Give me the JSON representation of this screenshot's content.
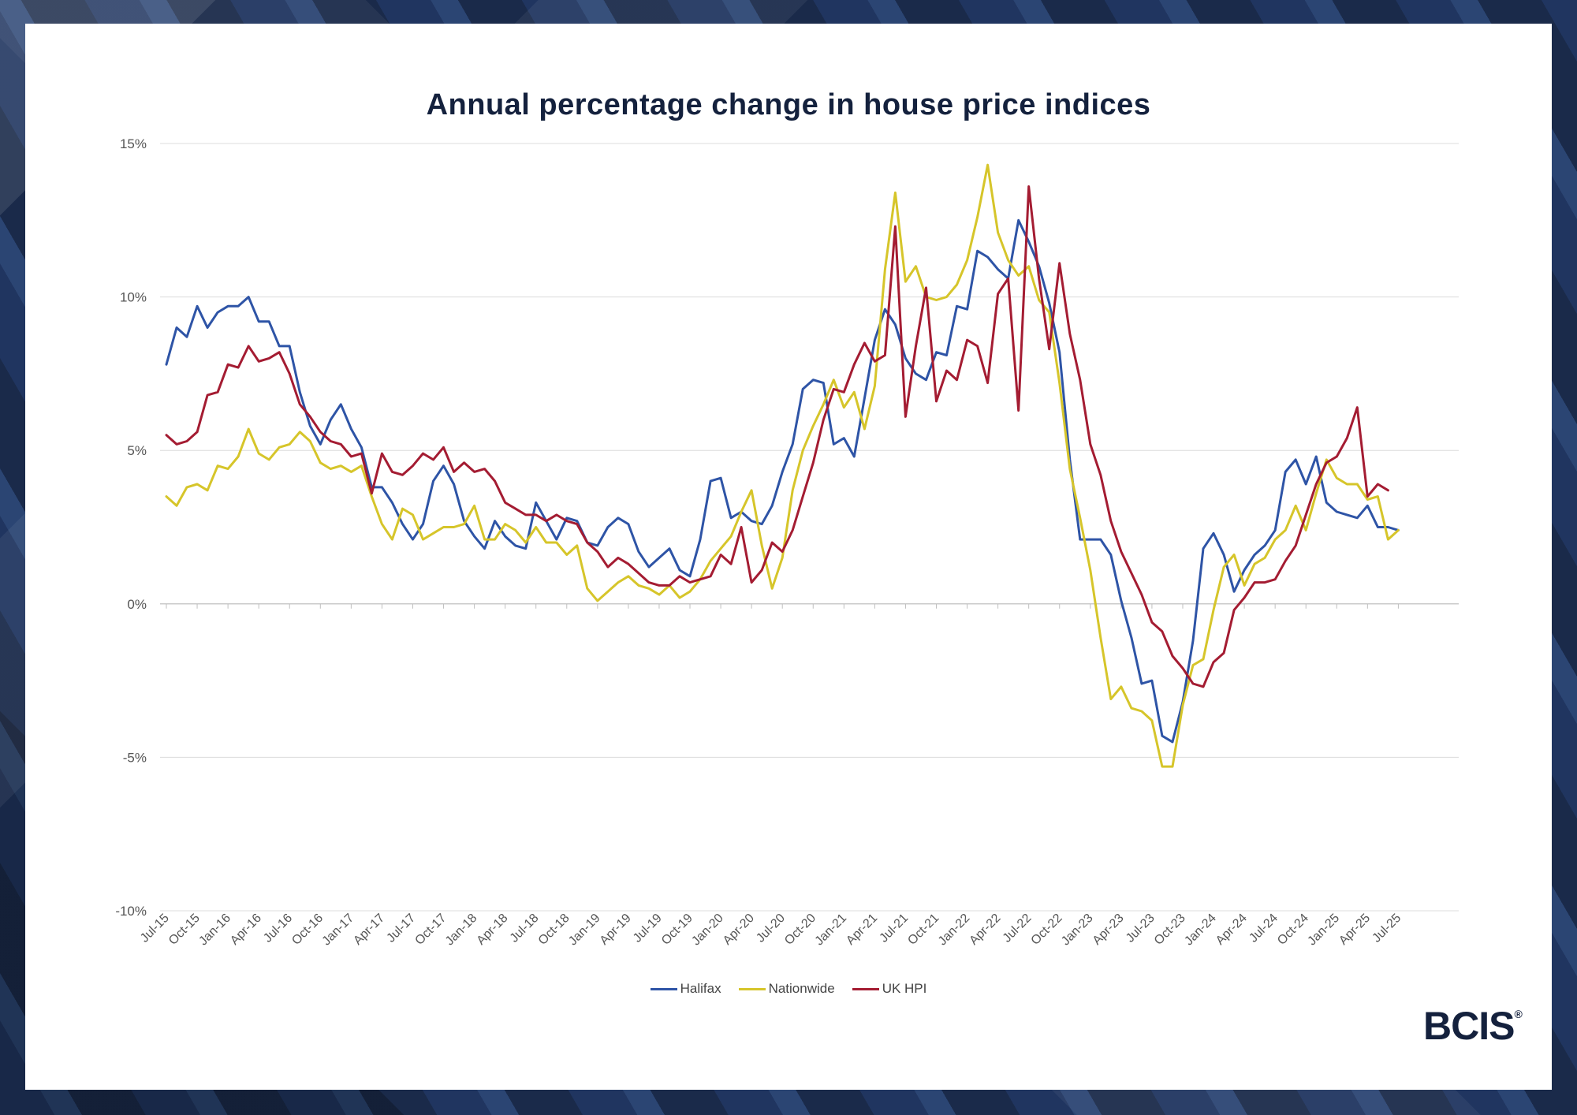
{
  "colors": {
    "halifax": "#2e54a6",
    "nationwide": "#d6c52a",
    "ukhpi": "#a41c32",
    "title": "#14213d"
  },
  "brand": {
    "logo_text": "BCIS",
    "logo_mark": "®"
  },
  "chart_data": {
    "type": "line",
    "title": "Annual percentage change in house price indices",
    "ylim": [
      -10,
      15
    ],
    "y_ticks": [
      15,
      10,
      5,
      0,
      -5,
      -10
    ],
    "y_tick_labels": [
      "15%",
      "10%",
      "5%",
      "0%",
      "-5%",
      "-10%"
    ],
    "x_start": "Jul-15",
    "x_tick_labels": [
      "Jul-15",
      "Oct-15",
      "Jan-16",
      "Apr-16",
      "Jul-16",
      "Oct-16",
      "Jan-17",
      "Apr-17",
      "Jul-17",
      "Oct-17",
      "Jan-18",
      "Apr-18",
      "Jul-18",
      "Oct-18",
      "Jan-19",
      "Apr-19",
      "Jul-19",
      "Oct-19",
      "Jan-20",
      "Apr-20",
      "Jul-20",
      "Oct-20",
      "Jan-21",
      "Apr-21",
      "Jul-21",
      "Oct-21",
      "Jan-22",
      "Apr-22",
      "Jul-22",
      "Oct-22",
      "Jan-23",
      "Apr-23",
      "Jul-23",
      "Oct-23",
      "Jan-24",
      "Apr-24",
      "Jul-24",
      "Oct-24",
      "Jan-25",
      "Apr-25",
      "Jul-25"
    ],
    "grid": true,
    "legend_position": "bottom",
    "series": [
      {
        "name": "Halifax",
        "color": "#2e54a6",
        "values": [
          7.8,
          9.0,
          8.7,
          9.7,
          9.0,
          9.5,
          9.7,
          9.7,
          10.0,
          9.2,
          9.2,
          8.4,
          8.4,
          6.9,
          5.8,
          5.2,
          6.0,
          6.5,
          5.7,
          5.1,
          3.8,
          3.8,
          3.3,
          2.6,
          2.1,
          2.6,
          4.0,
          4.5,
          3.9,
          2.7,
          2.2,
          1.8,
          2.7,
          2.2,
          1.9,
          1.8,
          3.3,
          2.7,
          2.1,
          2.8,
          2.7,
          2.0,
          1.9,
          2.5,
          2.8,
          2.6,
          1.7,
          1.2,
          1.5,
          1.8,
          1.1,
          0.9,
          2.1,
          4.0,
          4.1,
          2.8,
          3.0,
          2.7,
          2.6,
          3.2,
          4.3,
          5.2,
          7.0,
          7.3,
          7.2,
          5.2,
          5.4,
          4.8,
          6.7,
          8.6,
          9.6,
          9.1,
          8.0,
          7.5,
          7.3,
          8.2,
          8.1,
          9.7,
          9.6,
          11.5,
          11.3,
          10.9,
          10.6,
          12.5,
          11.8,
          11.0,
          9.8,
          8.2,
          4.7,
          2.1,
          2.1,
          2.1,
          1.6,
          0.1,
          -1.1,
          -2.6,
          -2.5,
          -4.3,
          -4.5,
          -3.2,
          -1.2,
          1.8,
          2.3,
          1.6,
          0.4,
          1.1,
          1.6,
          1.9,
          2.4,
          4.3,
          4.7,
          3.9,
          4.8,
          3.3,
          3.0,
          2.9,
          2.8,
          3.2,
          2.5,
          2.5,
          2.4
        ]
      },
      {
        "name": "Nationwide",
        "color": "#d6c52a",
        "values": [
          3.5,
          3.2,
          3.8,
          3.9,
          3.7,
          4.5,
          4.4,
          4.8,
          5.7,
          4.9,
          4.7,
          5.1,
          5.2,
          5.6,
          5.3,
          4.6,
          4.4,
          4.5,
          4.3,
          4.5,
          3.5,
          2.6,
          2.1,
          3.1,
          2.9,
          2.1,
          2.3,
          2.5,
          2.5,
          2.6,
          3.2,
          2.1,
          2.1,
          2.6,
          2.4,
          2.0,
          2.5,
          2.0,
          2.0,
          1.6,
          1.9,
          0.5,
          0.1,
          0.4,
          0.7,
          0.9,
          0.6,
          0.5,
          0.3,
          0.6,
          0.2,
          0.4,
          0.8,
          1.4,
          1.8,
          2.2,
          3.0,
          3.7,
          1.9,
          0.5,
          1.5,
          3.7,
          5.0,
          5.8,
          6.5,
          7.3,
          6.4,
          6.9,
          5.7,
          7.1,
          10.9,
          13.4,
          10.5,
          11.0,
          10.0,
          9.9,
          10.0,
          10.4,
          11.2,
          12.6,
          14.3,
          12.1,
          11.2,
          10.7,
          11.0,
          9.9,
          9.5,
          7.2,
          4.4,
          2.8,
          1.1,
          -1.1,
          -3.1,
          -2.7,
          -3.4,
          -3.5,
          -3.8,
          -5.3,
          -5.3,
          -3.3,
          -2.0,
          -1.8,
          -0.2,
          1.2,
          1.6,
          0.6,
          1.3,
          1.5,
          2.1,
          2.4,
          3.2,
          2.4,
          3.6,
          4.7,
          4.1,
          3.9,
          3.9,
          3.4,
          3.5,
          2.1,
          2.4
        ]
      },
      {
        "name": "UK HPI",
        "color": "#a41c32",
        "values": [
          5.5,
          5.2,
          5.3,
          5.6,
          6.8,
          6.9,
          7.8,
          7.7,
          8.4,
          7.9,
          8.0,
          8.2,
          7.5,
          6.5,
          6.1,
          5.6,
          5.3,
          5.2,
          4.8,
          4.9,
          3.6,
          4.9,
          4.3,
          4.2,
          4.5,
          4.9,
          4.7,
          5.1,
          4.3,
          4.6,
          4.3,
          4.4,
          4.0,
          3.3,
          3.1,
          2.9,
          2.9,
          2.7,
          2.9,
          2.7,
          2.6,
          2.0,
          1.7,
          1.2,
          1.5,
          1.3,
          1.0,
          0.7,
          0.6,
          0.6,
          0.9,
          0.7,
          0.8,
          0.9,
          1.6,
          1.3,
          2.5,
          0.7,
          1.1,
          2.0,
          1.7,
          2.4,
          3.5,
          4.6,
          6.0,
          7.0,
          6.9,
          7.8,
          8.5,
          7.9,
          8.1,
          12.3,
          6.1,
          8.4,
          10.3,
          6.6,
          7.6,
          7.3,
          8.6,
          8.4,
          7.2,
          10.1,
          10.6,
          6.3,
          13.6,
          10.6,
          8.3,
          11.1,
          8.8,
          7.3,
          5.2,
          4.2,
          2.7,
          1.7,
          1.0,
          0.3,
          -0.6,
          -0.9,
          -1.7,
          -2.1,
          -2.6,
          -2.7,
          -1.9,
          -1.6,
          -0.2,
          0.2,
          0.7,
          0.7,
          0.8,
          1.4,
          1.9,
          2.9,
          3.9,
          4.6,
          4.8,
          5.4,
          6.4,
          3.5,
          3.9,
          3.7
        ]
      }
    ]
  }
}
